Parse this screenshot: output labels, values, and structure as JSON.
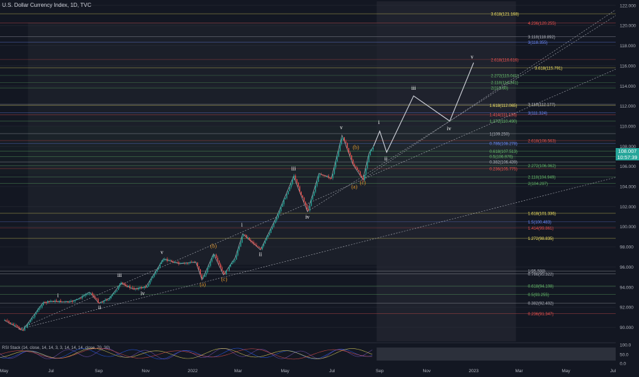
{
  "header": {
    "symbol_title": "U.S. Dollar Currency Index, 1D, TVC"
  },
  "price_tag": {
    "price": "108.007",
    "countdown": "10:57:39"
  },
  "indicator": {
    "label": "RSI Stack (14, close, 14, 14, 3, 3, 14, 14, 14, close, 70, 30)"
  },
  "colors": {
    "background": "#131722",
    "bull": "#26a69a",
    "bear": "#ef5350",
    "projection": "#d1d4dc",
    "white": "#ffffff",
    "yellow": "#f5e663",
    "red": "#ef5350",
    "green": "#66bb6a",
    "blue": "#6e8cff",
    "orange": "#ff9800",
    "gray": "#b2b5be",
    "wave_orange": "#e69a2e"
  },
  "chart_data": {
    "type": "candlestick",
    "title": "U.S. Dollar Currency Index, 1D, TVC",
    "x_axis": {
      "ticks": [
        "May",
        "Jul",
        "Sep",
        "Nov",
        "2022",
        "Mar",
        "May",
        "Jul",
        "Sep",
        "Nov",
        "2023",
        "Mar",
        "May",
        "Jul"
      ]
    },
    "y_axis": {
      "range": [
        88.6,
        122.4
      ],
      "ticks": [
        "122.000",
        "120.000",
        "118.000",
        "116.000",
        "114.000",
        "112.000",
        "110.000",
        "108.000",
        "106.000",
        "104.000",
        "102.000",
        "100.000",
        "98.000",
        "96.000",
        "94.000",
        "92.000",
        "90.000"
      ]
    },
    "price_path": [
      {
        "t": "2021-05-01",
        "v": 90.7
      },
      {
        "t": "2021-05-25",
        "v": 89.7
      },
      {
        "t": "2021-06-20",
        "v": 92.4
      },
      {
        "t": "2021-07-01",
        "v": 92.6
      },
      {
        "t": "2021-07-25",
        "v": 92.5
      },
      {
        "t": "2021-08-05",
        "v": 92.8
      },
      {
        "t": "2021-08-20",
        "v": 93.5
      },
      {
        "t": "2021-09-01",
        "v": 92.4
      },
      {
        "t": "2021-09-15",
        "v": 92.9
      },
      {
        "t": "2021-09-30",
        "v": 94.4
      },
      {
        "t": "2021-10-15",
        "v": 93.8
      },
      {
        "t": "2021-11-01",
        "v": 94.0
      },
      {
        "t": "2021-11-24",
        "v": 96.8
      },
      {
        "t": "2021-12-15",
        "v": 96.3
      },
      {
        "t": "2022-01-05",
        "v": 96.5
      },
      {
        "t": "2022-01-13",
        "v": 94.7
      },
      {
        "t": "2022-01-28",
        "v": 97.3
      },
      {
        "t": "2022-02-10",
        "v": 95.2
      },
      {
        "t": "2022-02-25",
        "v": 96.9
      },
      {
        "t": "2022-03-07",
        "v": 99.3
      },
      {
        "t": "2022-03-30",
        "v": 97.7
      },
      {
        "t": "2022-04-20",
        "v": 101.0
      },
      {
        "t": "2022-05-12",
        "v": 105.0
      },
      {
        "t": "2022-05-30",
        "v": 101.5
      },
      {
        "t": "2022-06-14",
        "v": 105.3
      },
      {
        "t": "2022-06-30",
        "v": 104.8
      },
      {
        "t": "2022-07-14",
        "v": 109.1
      },
      {
        "t": "2022-07-28",
        "v": 106.2
      },
      {
        "t": "2022-08-10",
        "v": 104.7
      },
      {
        "t": "2022-08-18",
        "v": 107.3
      },
      {
        "t": "2022-08-24",
        "v": 108.0
      }
    ],
    "projection_path": [
      {
        "t": "2022-08-24",
        "v": 108.0
      },
      {
        "t": "2022-09-01",
        "v": 109.5
      },
      {
        "t": "2022-09-10",
        "v": 107.4
      },
      {
        "t": "2022-10-15",
        "v": 113.0
      },
      {
        "t": "2022-12-01",
        "v": 110.5
      },
      {
        "t": "2023-01-01",
        "v": 116.3
      }
    ],
    "fib_levels": [
      {
        "label": "3.618(121.168)",
        "value": 121.168,
        "color": "yellow"
      },
      {
        "label": "4.236(120.255)",
        "value": 120.255,
        "color": "red"
      },
      {
        "label": "3.118(118.892)",
        "value": 118.892,
        "color": "gray"
      },
      {
        "label": "3(118.355)",
        "value": 118.355,
        "color": "blue"
      },
      {
        "label": "2.618(116.616)",
        "value": 116.616,
        "color": "red"
      },
      {
        "label": "3.618(115.791)",
        "value": 115.791,
        "color": "yellow"
      },
      {
        "label": "2.272(115.041)",
        "value": 115.041,
        "color": "green"
      },
      {
        "label": "2.118(114.341)",
        "value": 114.341,
        "color": "green"
      },
      {
        "label": "2(113.80)",
        "value": 113.8,
        "color": "green"
      },
      {
        "label": "3.118(112.177)",
        "value": 112.177,
        "color": "gray"
      },
      {
        "label": "1.618(112.065)",
        "value": 112.065,
        "color": "yellow"
      },
      {
        "label": "3(111.324)",
        "value": 111.324,
        "color": "blue"
      },
      {
        "label": "1.414(111.136)",
        "value": 111.136,
        "color": "red"
      },
      {
        "label": "1.272(110.490)",
        "value": 110.49,
        "color": "green"
      },
      {
        "label": "1(109.250)",
        "value": 109.25,
        "color": "gray"
      },
      {
        "label": "2.618(108.563)",
        "value": 108.563,
        "color": "red"
      },
      {
        "label": "0.786(108.278)",
        "value": 108.278,
        "color": "blue"
      },
      {
        "label": "0.618(107.513)",
        "value": 107.513,
        "color": "green"
      },
      {
        "label": "0.5(106.976)",
        "value": 106.976,
        "color": "green"
      },
      {
        "label": "0.382(106.439)",
        "value": 106.439,
        "color": "gray"
      },
      {
        "label": "2.272(106.062)",
        "value": 106.062,
        "color": "green"
      },
      {
        "label": "0.236(105.775)",
        "value": 105.775,
        "color": "red"
      },
      {
        "label": "2.118(104.949)",
        "value": 104.949,
        "color": "green"
      },
      {
        "label": "2(104.297)",
        "value": 104.297,
        "color": "green"
      },
      {
        "label": "1.618(101.336)",
        "value": 101.336,
        "color": "yellow"
      },
      {
        "label": "1.5(100.483)",
        "value": 100.483,
        "color": "blue"
      },
      {
        "label": "1.414(99.861)",
        "value": 99.861,
        "color": "red"
      },
      {
        "label": "1.272(98.835)",
        "value": 98.835,
        "color": "yellow"
      },
      {
        "label": "1(95.598)",
        "value": 95.598,
        "color": "gray"
      },
      {
        "label": "0.786(95.322)",
        "value": 95.322,
        "color": "gray"
      },
      {
        "label": "0.618(94.108)",
        "value": 94.108,
        "color": "green"
      },
      {
        "label": "0.5(93.255)",
        "value": 93.255,
        "color": "green"
      },
      {
        "label": "0.382(92.402)",
        "value": 92.402,
        "color": "gray"
      },
      {
        "label": "0.236(91.347)",
        "value": 91.347,
        "color": "red"
      }
    ],
    "wave_labels": [
      {
        "text": "i",
        "t": "2021-07-10",
        "v": 93.0,
        "color": "white"
      },
      {
        "text": "ii",
        "t": "2021-09-02",
        "v": 91.8,
        "color": "white"
      },
      {
        "text": "iii",
        "t": "2021-09-28",
        "v": 95.0,
        "color": "white"
      },
      {
        "text": "iv",
        "t": "2021-10-28",
        "v": 93.2,
        "color": "white"
      },
      {
        "text": "v",
        "t": "2021-11-22",
        "v": 97.3,
        "color": "white"
      },
      {
        "text": "(a)",
        "t": "2022-01-14",
        "v": 94.1,
        "color": "wave_orange"
      },
      {
        "text": "(b)",
        "t": "2022-01-28",
        "v": 97.9,
        "color": "wave_orange"
      },
      {
        "text": "(c)",
        "t": "2022-02-11",
        "v": 94.6,
        "color": "wave_orange"
      },
      {
        "text": "i",
        "t": "2022-03-06",
        "v": 100.0,
        "color": "white"
      },
      {
        "text": "ii",
        "t": "2022-03-30",
        "v": 97.1,
        "color": "white"
      },
      {
        "text": "iii",
        "t": "2022-05-12",
        "v": 105.6,
        "color": "white"
      },
      {
        "text": "iv",
        "t": "2022-05-30",
        "v": 100.8,
        "color": "white"
      },
      {
        "text": "v",
        "t": "2022-07-13",
        "v": 109.7,
        "color": "white"
      },
      {
        "text": "(b)",
        "t": "2022-08-01",
        "v": 107.7,
        "color": "wave_orange"
      },
      {
        "text": "(a)",
        "t": "2022-07-30",
        "v": 103.8,
        "color": "wave_orange"
      },
      {
        "text": "(c)",
        "t": "2022-08-10",
        "v": 104.2,
        "color": "wave_orange"
      },
      {
        "text": "i",
        "t": "2022-08-31",
        "v": 110.2,
        "color": "white"
      },
      {
        "text": "ii",
        "t": "2022-09-09",
        "v": 106.6,
        "color": "white"
      },
      {
        "text": "iii",
        "t": "2022-10-15",
        "v": 113.6,
        "color": "white"
      },
      {
        "text": "iv",
        "t": "2022-11-30",
        "v": 109.6,
        "color": "white"
      },
      {
        "text": "v",
        "t": "2022-12-30",
        "v": 116.7,
        "color": "white"
      }
    ],
    "trendlines": [
      {
        "from": {
          "t": "2021-05-20",
          "v": 89.8
        },
        "to": {
          "t": "2022-08-10",
          "v": 104.7
        }
      },
      {
        "from": {
          "t": "2021-05-20",
          "v": 89.8
        },
        "to": {
          "t": "2022-02-11",
          "v": 95.0
        }
      },
      {
        "from": {
          "t": "2022-08-10",
          "v": 104.7
        },
        "to": {
          "t": "2022-12-01",
          "v": 110.5
        }
      },
      {
        "from": {
          "t": "2022-05-30",
          "v": 101.5
        },
        "to": {
          "t": "2022-12-01",
          "v": 110.5
        }
      }
    ],
    "rsi_axis": {
      "ticks": [
        "100.0",
        "50.0",
        "0.0"
      ]
    }
  }
}
